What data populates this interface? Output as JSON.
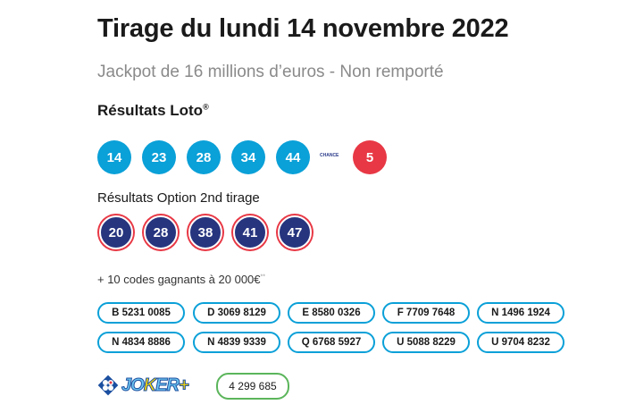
{
  "title": "Tirage du lundi 14 novembre 2022",
  "subtitle": "Jackpot de 16 millions d’euros - Non remporté",
  "loto": {
    "heading": "Résultats Loto",
    "reg": "®",
    "numbers": [
      "14",
      "23",
      "28",
      "34",
      "44"
    ],
    "chance_label": "CHANCE",
    "chance": "5"
  },
  "option": {
    "heading": "Résultats Option 2nd tirage",
    "numbers": [
      "20",
      "28",
      "38",
      "41",
      "47"
    ]
  },
  "codes": {
    "label": "+ 10 codes gagnants à 20 000€",
    "note": "**",
    "items": [
      "B 5231 0085",
      "D 3069 8129",
      "E 8580 0326",
      "F 7709 7648",
      "N 1496 1924",
      "N 4834 8886",
      "N 4839 9339",
      "Q 6768 5927",
      "U 5088 8229",
      "U 9704 8232"
    ]
  },
  "joker": {
    "logo": "JOKER+",
    "number": "4 299 685"
  },
  "colors": {
    "blue": "#0aa0d8",
    "red": "#e83845",
    "navy": "#27357f",
    "green": "#5bb55b"
  }
}
